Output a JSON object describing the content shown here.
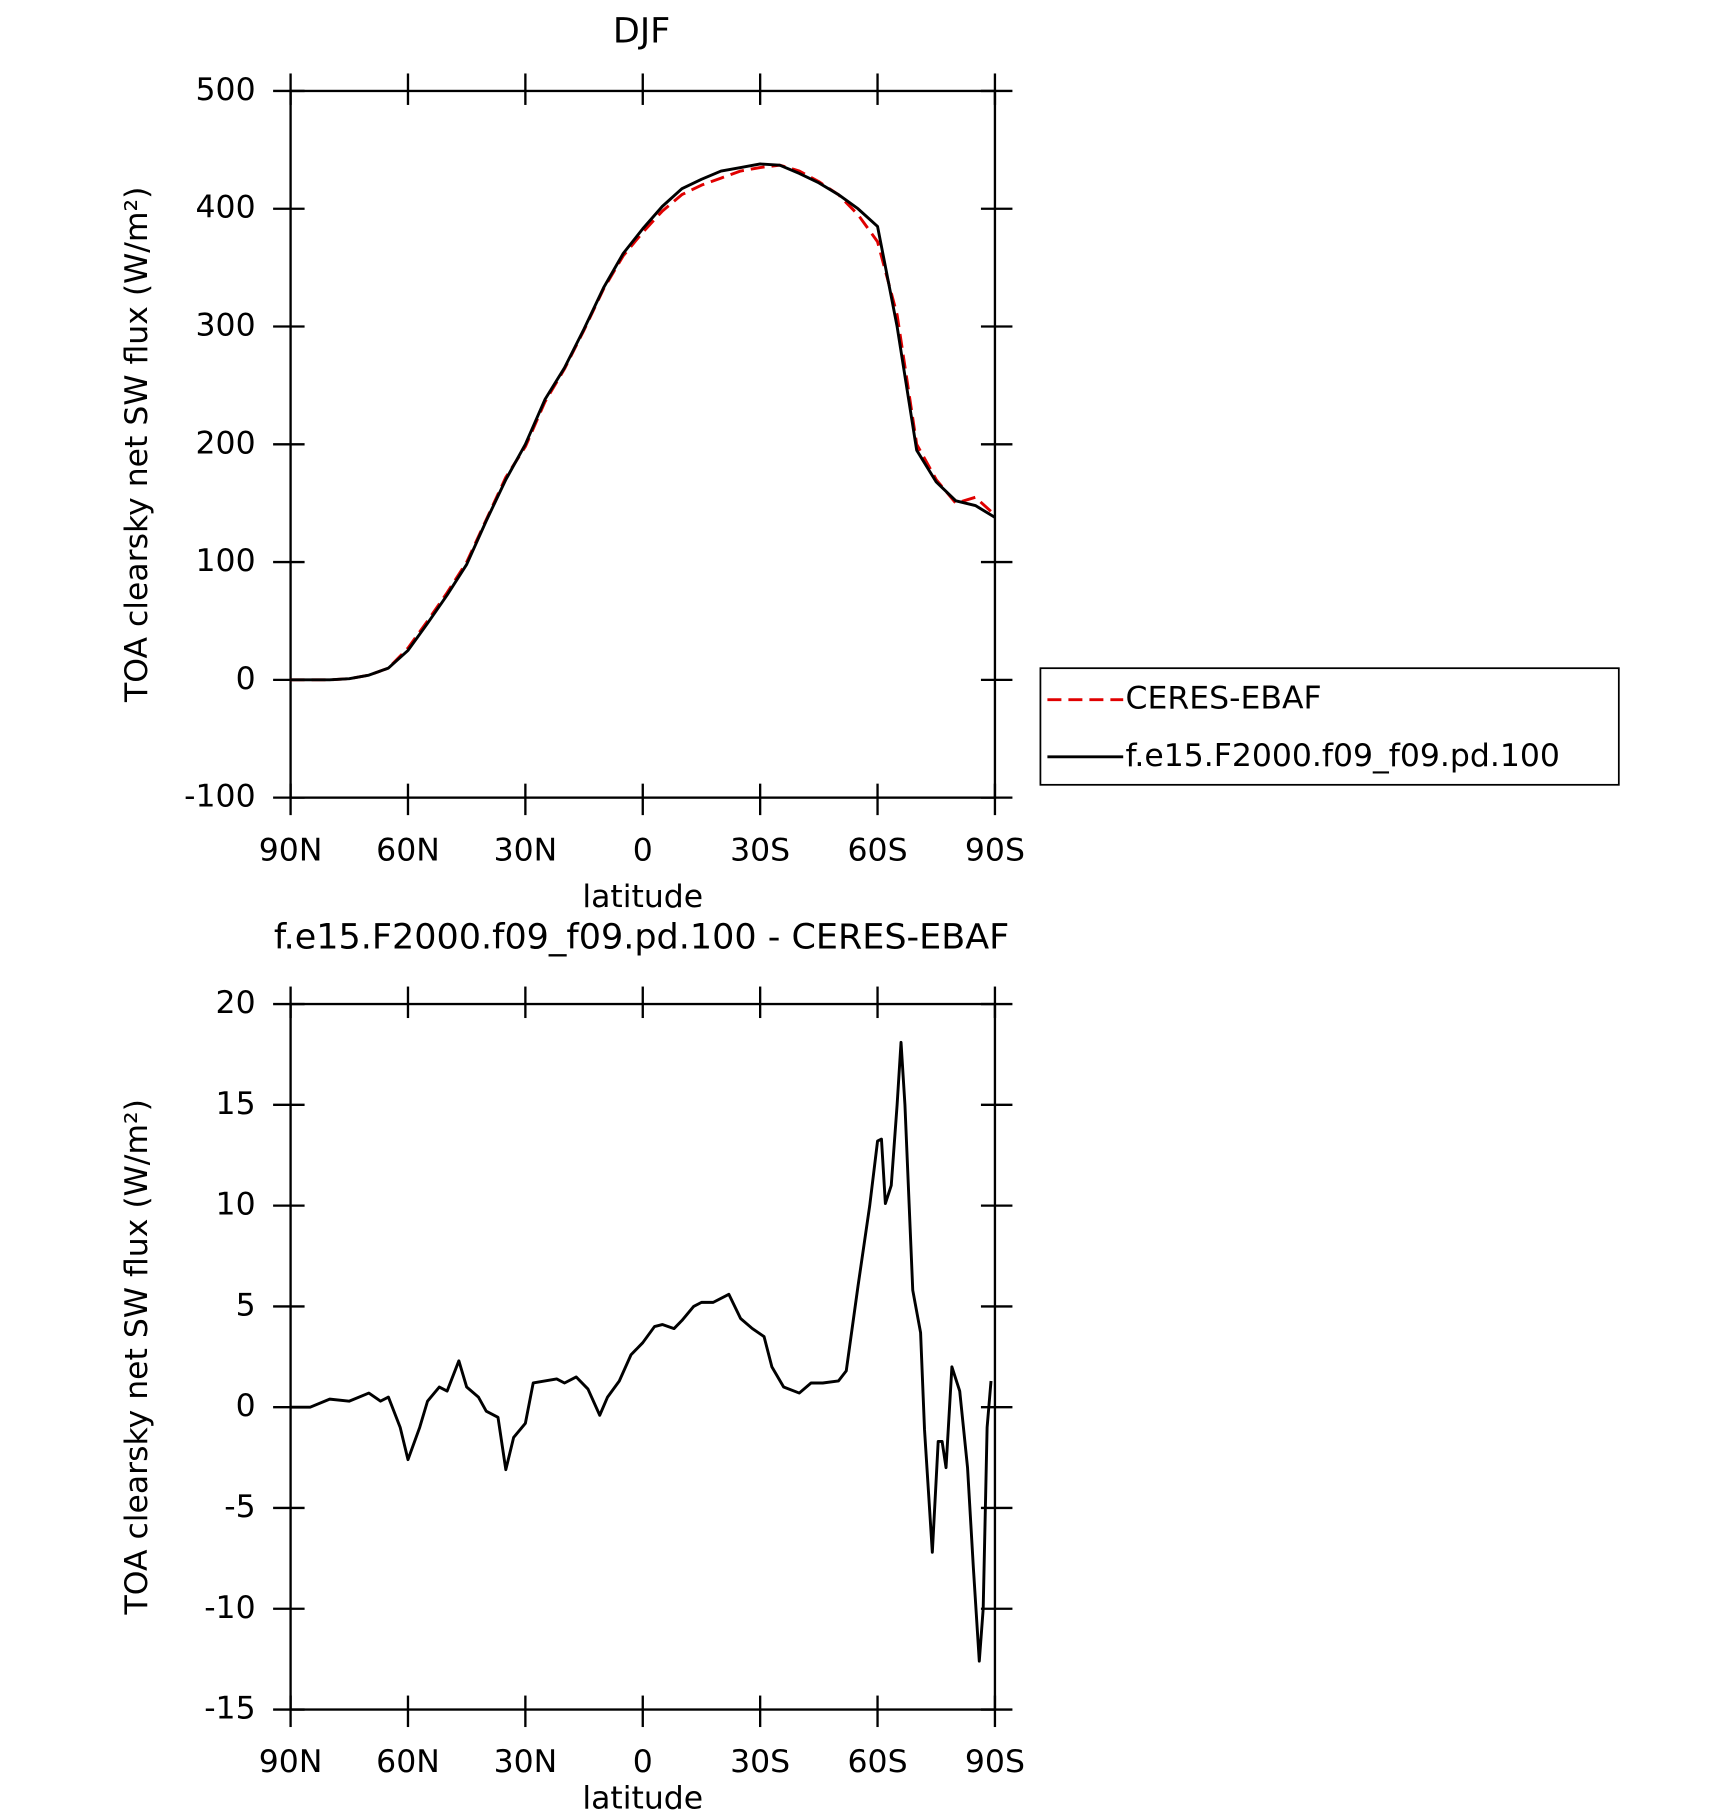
{
  "chart_data": [
    {
      "type": "line",
      "title": "DJF",
      "x_label": "latitude",
      "y_label": "TOA clearsky net SW flux (W/m²)",
      "xlim": [
        90,
        -90
      ],
      "ylim": [
        -100,
        500
      ],
      "xticks": [
        {
          "value": 90,
          "label": "90N"
        },
        {
          "value": 60,
          "label": "60N"
        },
        {
          "value": 30,
          "label": "30N"
        },
        0,
        {
          "value": -30,
          "label": "30S"
        },
        {
          "value": -60,
          "label": "60S"
        },
        {
          "value": -90,
          "label": "90S"
        }
      ],
      "yticks": [
        -100,
        0,
        100,
        200,
        300,
        400,
        500
      ],
      "x": [
        90,
        85,
        80,
        75,
        70,
        65,
        60,
        55,
        50,
        45,
        40,
        35,
        30,
        25,
        20,
        15,
        10,
        5,
        0,
        -5,
        -10,
        -15,
        -20,
        -25,
        -30,
        -35,
        -40,
        -45,
        -50,
        -55,
        -60,
        -65,
        -70,
        -75,
        -80,
        -85,
        -90
      ],
      "series": [
        {
          "name": "CERES-EBAF",
          "color": "#e00000",
          "dash": true,
          "values": [
            0,
            0,
            0,
            1,
            4,
            10,
            27,
            50,
            74,
            100,
            136,
            172,
            198,
            236,
            264,
            297,
            332,
            360,
            380,
            398,
            412,
            420,
            426,
            432,
            435,
            437,
            432,
            423,
            412,
            395,
            372,
            310,
            200,
            170,
            150,
            155,
            140
          ]
        },
        {
          "name": "f.e15.F2000.f09_f09.pd.100",
          "color": "#000000",
          "dash": false,
          "values": [
            0,
            0,
            0,
            1,
            4,
            10,
            25,
            48,
            72,
            98,
            135,
            170,
            200,
            238,
            265,
            298,
            333,
            362,
            383,
            402,
            417,
            425,
            432,
            435,
            438,
            437,
            430,
            422,
            412,
            400,
            385,
            300,
            195,
            168,
            152,
            148,
            138
          ]
        }
      ]
    },
    {
      "type": "line",
      "title": "f.e15.F2000.f09_f09.pd.100 - CERES-EBAF",
      "x_label": "latitude",
      "y_label": "TOA clearsky net SW flux (W/m²)",
      "xlim": [
        90,
        -90
      ],
      "ylim": [
        -15,
        20
      ],
      "xticks": [
        {
          "value": 90,
          "label": "90N"
        },
        {
          "value": 60,
          "label": "60N"
        },
        {
          "value": 30,
          "label": "30N"
        },
        0,
        {
          "value": -30,
          "label": "30S"
        },
        {
          "value": -60,
          "label": "60S"
        },
        {
          "value": -90,
          "label": "90S"
        }
      ],
      "yticks": [
        -15,
        -10,
        -5,
        0,
        5,
        10,
        15,
        20
      ],
      "x": [
        90,
        85,
        80,
        75,
        70,
        67,
        65,
        62,
        60,
        57,
        55,
        52,
        50,
        47,
        45,
        42,
        40,
        37,
        35,
        33,
        30,
        28,
        25,
        22,
        20,
        17,
        14,
        11,
        9,
        6,
        3,
        0,
        -3,
        -5,
        -8,
        -10,
        -13,
        -15,
        -18,
        -22,
        -25,
        -28,
        -31,
        -33,
        -36,
        -40,
        -43,
        -46,
        -50,
        -52,
        -55,
        -58,
        -60,
        -61,
        -62,
        -63.5,
        -65,
        -66,
        -67,
        -69,
        -71,
        -72,
        -74,
        -75.5,
        -76.5,
        -77.5,
        -79,
        -81,
        -83,
        -84.5,
        -86,
        -87,
        -88,
        -89
      ],
      "series": [
        {
          "color": "#000000",
          "dash": false,
          "values": [
            0,
            0,
            0.4,
            0.3,
            0.7,
            0.3,
            0.5,
            -1,
            -2.6,
            -1,
            0.3,
            1,
            0.8,
            2.3,
            1,
            0.5,
            -0.2,
            -0.5,
            -3.1,
            -1.5,
            -0.8,
            1.2,
            1.3,
            1.4,
            1.2,
            1.5,
            0.9,
            -0.4,
            0.5,
            1.3,
            2.6,
            3.2,
            4.0,
            4.1,
            3.9,
            4.3,
            5.0,
            5.2,
            5.2,
            5.6,
            4.4,
            3.9,
            3.5,
            2.0,
            1.0,
            0.7,
            1.2,
            1.2,
            1.3,
            1.8,
            6,
            10,
            13.2,
            13.3,
            10.1,
            11,
            15,
            18.1,
            15,
            5.8,
            3.7,
            -1.1,
            -7.2,
            -1.7,
            -1.7,
            -3,
            2,
            0.8,
            -3,
            -8,
            -12.6,
            -10,
            -1,
            1.3
          ]
        }
      ]
    }
  ]
}
